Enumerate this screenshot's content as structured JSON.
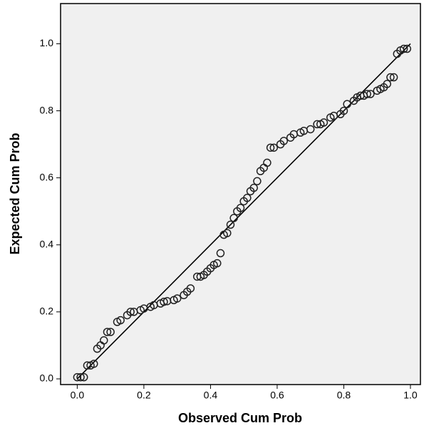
{
  "chart_data": {
    "type": "scatter",
    "x_label": "Observed Cum Prob",
    "y_label": "Expected Cum Prob",
    "xlim": [
      -0.05,
      1.03
    ],
    "ylim": [
      -0.017,
      1.12
    ],
    "xticks": [
      {
        "value": 0,
        "label": "0.0"
      },
      0.2,
      0.4,
      0.6,
      0.8,
      {
        "value": 1,
        "label": "1.0"
      }
    ],
    "yticks": [
      {
        "value": 0,
        "label": "0.0"
      },
      0.2,
      0.4,
      0.6,
      0.8,
      {
        "value": 1,
        "label": "1.0"
      }
    ],
    "color": "#222222",
    "reference_line": {
      "x": [
        0,
        1
      ],
      "values": [
        0,
        1
      ]
    },
    "x": [
      0.0,
      0.01,
      0.02,
      0.03,
      0.04,
      0.05,
      0.06,
      0.07,
      0.08,
      0.09,
      0.1,
      0.12,
      0.13,
      0.15,
      0.16,
      0.17,
      0.19,
      0.2,
      0.22,
      0.23,
      0.25,
      0.26,
      0.27,
      0.29,
      0.3,
      0.32,
      0.33,
      0.34,
      0.36,
      0.37,
      0.38,
      0.39,
      0.4,
      0.41,
      0.42,
      0.43,
      0.44,
      0.45,
      0.46,
      0.47,
      0.48,
      0.49,
      0.5,
      0.51,
      0.52,
      0.53,
      0.54,
      0.55,
      0.56,
      0.57,
      0.58,
      0.59,
      0.61,
      0.62,
      0.64,
      0.65,
      0.67,
      0.68,
      0.7,
      0.72,
      0.73,
      0.74,
      0.76,
      0.77,
      0.79,
      0.8,
      0.81,
      0.83,
      0.84,
      0.85,
      0.86,
      0.87,
      0.88,
      0.9,
      0.91,
      0.92,
      0.93,
      0.94,
      0.95,
      0.96,
      0.97,
      0.98,
      0.99
    ],
    "values": [
      0.005,
      0.005,
      0.005,
      0.04,
      0.04,
      0.045,
      0.09,
      0.1,
      0.115,
      0.14,
      0.14,
      0.17,
      0.175,
      0.19,
      0.2,
      0.2,
      0.205,
      0.21,
      0.215,
      0.22,
      0.225,
      0.23,
      0.232,
      0.235,
      0.24,
      0.25,
      0.26,
      0.27,
      0.305,
      0.305,
      0.31,
      0.32,
      0.33,
      0.34,
      0.345,
      0.375,
      0.43,
      0.435,
      0.46,
      0.48,
      0.5,
      0.51,
      0.53,
      0.54,
      0.56,
      0.57,
      0.59,
      0.62,
      0.63,
      0.645,
      0.69,
      0.69,
      0.7,
      0.71,
      0.72,
      0.73,
      0.735,
      0.74,
      0.745,
      0.76,
      0.76,
      0.765,
      0.78,
      0.785,
      0.79,
      0.8,
      0.82,
      0.83,
      0.84,
      0.845,
      0.845,
      0.85,
      0.85,
      0.86,
      0.865,
      0.87,
      0.88,
      0.9,
      0.9,
      0.97,
      0.98,
      0.985,
      0.985
    ]
  }
}
